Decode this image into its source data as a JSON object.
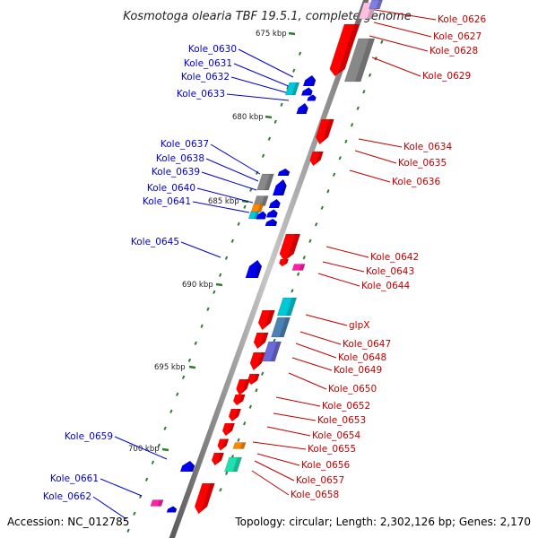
{
  "title": "Kosmotoga olearia TBF 19.5.1, complete genome",
  "accession": "Accession: NC_012785",
  "topology": "Topology: circular; Length: 2,302,126 bp; Genes: 2,170",
  "kbp_ticks": [
    "675 kbp",
    "680 kbp",
    "685 kbp",
    "690 kbp",
    "695 kbp",
    "700 kbp"
  ],
  "left_genes": [
    "Kole_0630",
    "Kole_0631",
    "Kole_0632",
    "Kole_0633",
    "Kole_0637",
    "Kole_0638",
    "Kole_0639",
    "Kole_0640",
    "Kole_0641",
    "Kole_0645",
    "Kole_0659",
    "Kole_0661",
    "Kole_0662"
  ],
  "right_genes": [
    "Kole_0626",
    "Kole_0627",
    "Kole_0628",
    "Kole_0629",
    "Kole_0634",
    "Kole_0635",
    "Kole_0636",
    "Kole_0642",
    "Kole_0643",
    "Kole_0644",
    "glpX",
    "Kole_0647",
    "Kole_0648",
    "Kole_0649",
    "Kole_0650",
    "Kole_0652",
    "Kole_0653",
    "Kole_0654",
    "Kole_0655",
    "Kole_0656",
    "Kole_0657",
    "Kole_0658"
  ],
  "colors": {
    "forward_label": "#c00000",
    "reverse_label": "#0000cc",
    "forward_gene": "#ff0000",
    "reverse_gene": "#0000ee",
    "backbone": "#8a8a8a",
    "tick": "#2e7d32",
    "cyan": "#00c8d8",
    "gray": "#888888",
    "orange": "#ff8800",
    "magenta": "#ff1fa8",
    "slate": "#4a82b4",
    "violet": "#6a6ad8",
    "teal": "#20e0b0",
    "pink": "#ffc0e0",
    "lavender": "#8080e0"
  }
}
